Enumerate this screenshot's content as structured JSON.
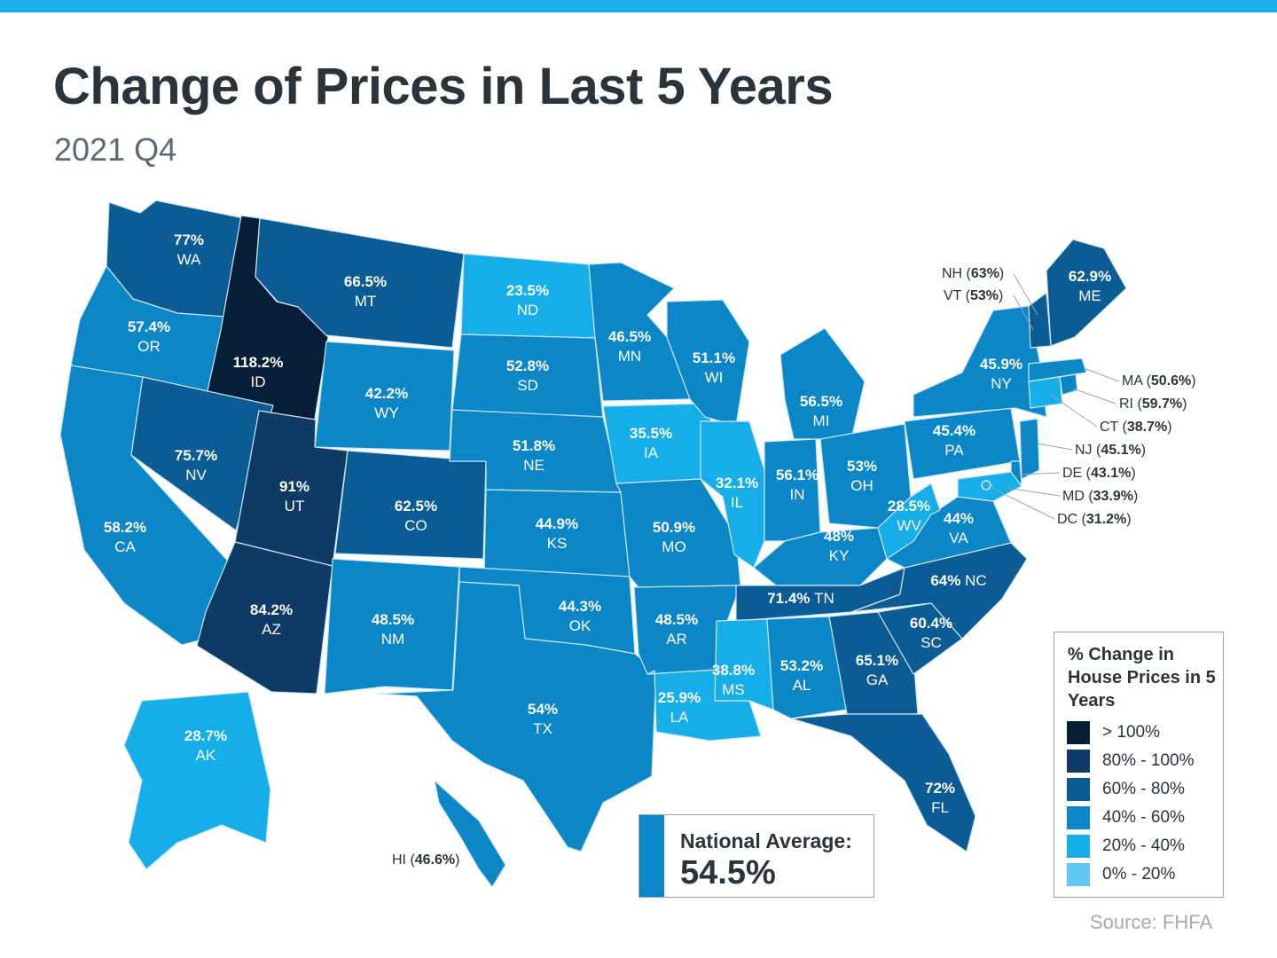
{
  "header": {
    "title": "Change of Prices in Last 5 Years",
    "subtitle": "2021 Q4"
  },
  "colors": {
    "top_bar": "#1aaeeb",
    "bin_over_100": "#061e36",
    "bin_80_100": "#0e3a63",
    "bin_60_80": "#0b5b94",
    "bin_40_60": "#0b86c6",
    "bin_20_40": "#16aee9",
    "bin_0_20": "#5ec7f3",
    "text_dark": "#2b333b"
  },
  "states": [
    {
      "abbr": "WA",
      "value": "77%",
      "bin": "bin_60_80"
    },
    {
      "abbr": "OR",
      "value": "57.4%",
      "bin": "bin_40_60"
    },
    {
      "abbr": "CA",
      "value": "58.2%",
      "bin": "bin_40_60"
    },
    {
      "abbr": "ID",
      "value": "118.2%",
      "bin": "bin_over_100"
    },
    {
      "abbr": "NV",
      "value": "75.7%",
      "bin": "bin_60_80"
    },
    {
      "abbr": "MT",
      "value": "66.5%",
      "bin": "bin_60_80"
    },
    {
      "abbr": "WY",
      "value": "42.2%",
      "bin": "bin_40_60"
    },
    {
      "abbr": "UT",
      "value": "91%",
      "bin": "bin_80_100"
    },
    {
      "abbr": "AZ",
      "value": "84.2%",
      "bin": "bin_80_100"
    },
    {
      "abbr": "CO",
      "value": "62.5%",
      "bin": "bin_60_80"
    },
    {
      "abbr": "NM",
      "value": "48.5%",
      "bin": "bin_40_60"
    },
    {
      "abbr": "ND",
      "value": "23.5%",
      "bin": "bin_20_40"
    },
    {
      "abbr": "SD",
      "value": "52.8%",
      "bin": "bin_40_60"
    },
    {
      "abbr": "NE",
      "value": "51.8%",
      "bin": "bin_40_60"
    },
    {
      "abbr": "KS",
      "value": "44.9%",
      "bin": "bin_40_60"
    },
    {
      "abbr": "OK",
      "value": "44.3%",
      "bin": "bin_40_60"
    },
    {
      "abbr": "TX",
      "value": "54%",
      "bin": "bin_40_60"
    },
    {
      "abbr": "MN",
      "value": "46.5%",
      "bin": "bin_40_60"
    },
    {
      "abbr": "IA",
      "value": "35.5%",
      "bin": "bin_20_40"
    },
    {
      "abbr": "MO",
      "value": "50.9%",
      "bin": "bin_40_60"
    },
    {
      "abbr": "AR",
      "value": "48.5%",
      "bin": "bin_40_60"
    },
    {
      "abbr": "LA",
      "value": "25.9%",
      "bin": "bin_20_40"
    },
    {
      "abbr": "WI",
      "value": "51.1%",
      "bin": "bin_40_60"
    },
    {
      "abbr": "IL",
      "value": "32.1%",
      "bin": "bin_20_40"
    },
    {
      "abbr": "MI",
      "value": "56.5%",
      "bin": "bin_40_60"
    },
    {
      "abbr": "IN",
      "value": "56.1%",
      "bin": "bin_40_60"
    },
    {
      "abbr": "OH",
      "value": "53%",
      "bin": "bin_40_60"
    },
    {
      "abbr": "KY",
      "value": "48%",
      "bin": "bin_40_60"
    },
    {
      "abbr": "TN",
      "value": "71.4%",
      "bin": "bin_60_80"
    },
    {
      "abbr": "MS",
      "value": "38.8%",
      "bin": "bin_20_40"
    },
    {
      "abbr": "AL",
      "value": "53.2%",
      "bin": "bin_40_60"
    },
    {
      "abbr": "GA",
      "value": "65.1%",
      "bin": "bin_60_80"
    },
    {
      "abbr": "FL",
      "value": "72%",
      "bin": "bin_60_80"
    },
    {
      "abbr": "SC",
      "value": "60.4%",
      "bin": "bin_60_80"
    },
    {
      "abbr": "NC",
      "value": "64%",
      "bin": "bin_60_80"
    },
    {
      "abbr": "VA",
      "value": "44%",
      "bin": "bin_40_60"
    },
    {
      "abbr": "WV",
      "value": "28.5%",
      "bin": "bin_20_40"
    },
    {
      "abbr": "PA",
      "value": "45.4%",
      "bin": "bin_40_60"
    },
    {
      "abbr": "NY",
      "value": "45.9%",
      "bin": "bin_40_60"
    },
    {
      "abbr": "ME",
      "value": "62.9%",
      "bin": "bin_60_80"
    },
    {
      "abbr": "AK",
      "value": "28.7%",
      "bin": "bin_20_40"
    },
    {
      "abbr": "NH",
      "value": "63%",
      "bin": "bin_60_80"
    },
    {
      "abbr": "VT",
      "value": "53%",
      "bin": "bin_40_60"
    },
    {
      "abbr": "MA",
      "value": "50.6%",
      "bin": "bin_40_60"
    },
    {
      "abbr": "RI",
      "value": "59.7%",
      "bin": "bin_40_60"
    },
    {
      "abbr": "CT",
      "value": "38.7%",
      "bin": "bin_20_40"
    },
    {
      "abbr": "NJ",
      "value": "45.1%",
      "bin": "bin_40_60"
    },
    {
      "abbr": "DE",
      "value": "43.1%",
      "bin": "bin_40_60"
    },
    {
      "abbr": "MD",
      "value": "33.9%",
      "bin": "bin_20_40"
    },
    {
      "abbr": "DC",
      "value": "31.2%",
      "bin": "bin_20_40"
    },
    {
      "abbr": "HI",
      "value": "46.6%",
      "bin": "bin_40_60"
    }
  ],
  "national_average": {
    "label": "National Average:",
    "value": "54.5%"
  },
  "legend": {
    "title": "% Change in House Prices in 5 Years",
    "items": [
      {
        "label": "> 100%",
        "bin": "bin_over_100"
      },
      {
        "label": "80% - 100%",
        "bin": "bin_80_100"
      },
      {
        "label": "60% - 80%",
        "bin": "bin_60_80"
      },
      {
        "label": "40% - 60%",
        "bin": "bin_40_60"
      },
      {
        "label": "20% - 40%",
        "bin": "bin_20_40"
      },
      {
        "label": "0% - 20%",
        "bin": "bin_0_20"
      }
    ]
  },
  "source": "Source: FHFA"
}
